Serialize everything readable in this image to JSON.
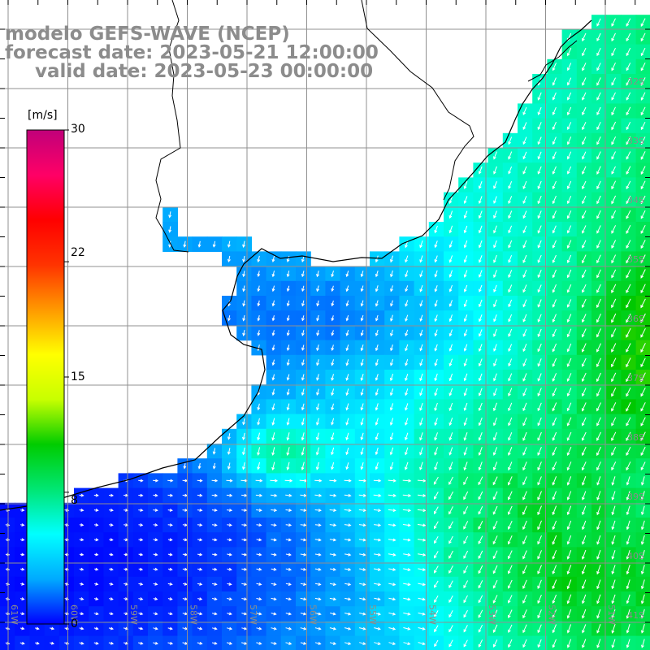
{
  "header": {
    "line1": "modelo GEFS-WAVE (NCEP)",
    "line2": "forecast date: 2023-05-21 12:00:00",
    "line3": "valid date: 2023-05-23 00:00:00"
  },
  "colorbar": {
    "unit": "[m/s]",
    "ticks": [
      "30",
      "22",
      "15",
      "8",
      "0"
    ],
    "tick_values": [
      30,
      22,
      15,
      8,
      0
    ],
    "gradient_colors": [
      "#0000ff",
      "#00aaff",
      "#00ffff",
      "#00e673",
      "#00cc00",
      "#c8ff00",
      "#ffff00",
      "#ff9900",
      "#ff3300",
      "#ff0000",
      "#ff0066",
      "#c0007a"
    ]
  },
  "map": {
    "lat_labels": [
      "32S",
      "33S",
      "34S",
      "35S",
      "36S",
      "37S",
      "38S",
      "39S",
      "40S",
      "41S"
    ],
    "lon_labels": [
      "61W",
      "60W",
      "59W",
      "58W",
      "57W",
      "56W",
      "55W",
      "54W",
      "53W",
      "52W",
      "51W"
    ],
    "colors": {
      "land": "#ffffff",
      "grid": "#909090",
      "coast": "#000000",
      "arrows": "#ffffff",
      "label": "#8c8c8c"
    }
  }
}
